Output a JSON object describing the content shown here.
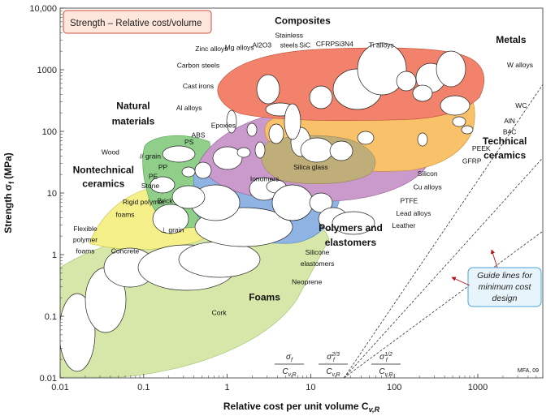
{
  "chart_data": {
    "type": "scatter",
    "title": "Strength – Relative cost/volume",
    "xlabel": "Relative cost per unit volume C",
    "xlabel_sub": "v,R",
    "ylabel": "Strength σ",
    "ylabel_sub": "f",
    "ylabel_unit": "(MPa)",
    "x_scale": "log",
    "y_scale": "log",
    "xlim": [
      0.01,
      6000
    ],
    "ylim": [
      0.01,
      10000
    ],
    "x_ticks": [
      {
        "v": 0.01,
        "label": "0.01"
      },
      {
        "v": 0.1,
        "label": "0.1"
      },
      {
        "v": 1,
        "label": "1"
      },
      {
        "v": 10,
        "label": "10"
      },
      {
        "v": 100,
        "label": "100"
      },
      {
        "v": 1000,
        "label": "1000"
      }
    ],
    "y_ticks": [
      {
        "v": 0.01,
        "label": "0.01"
      },
      {
        "v": 0.1,
        "label": "0.1"
      },
      {
        "v": 1,
        "label": "1"
      },
      {
        "v": 10,
        "label": "10"
      },
      {
        "v": 100,
        "label": "100"
      },
      {
        "v": 1000,
        "label": "1000"
      },
      {
        "v": 10000,
        "label": "10,000"
      }
    ],
    "families": [
      {
        "name": "Metals",
        "color": "#f2826b"
      },
      {
        "name": "Composites",
        "color": "#c99acb"
      },
      {
        "name": "Technical ceramics",
        "color": "#f9c16a"
      },
      {
        "name": "Natural materials",
        "color": "#8fcf8a"
      },
      {
        "name": "Nontechnical ceramics",
        "color": "#f6f08a"
      },
      {
        "name": "Polymers and elastomers",
        "color": "#8fb4e3"
      },
      {
        "name": "Foams",
        "color": "#d7e7a9"
      }
    ],
    "family_labels": [
      {
        "text": "Composites",
        "x": 8,
        "y": 5500
      },
      {
        "text": "Metals",
        "x": 2500,
        "y": 2700
      },
      {
        "text": "Natural",
        "x": 0.075,
        "y": 230
      },
      {
        "text": "materials",
        "x": 0.075,
        "y": 130
      },
      {
        "text": "Technical",
        "x": 2100,
        "y": 62
      },
      {
        "text": "ceramics",
        "x": 2100,
        "y": 36
      },
      {
        "text": "Nontechnical",
        "x": 0.033,
        "y": 21
      },
      {
        "text": "ceramics",
        "x": 0.033,
        "y": 12.5
      },
      {
        "text": "Polymers and",
        "x": 30,
        "y": 2.4
      },
      {
        "text": "elastomers",
        "x": 30,
        "y": 1.4
      },
      {
        "text": "Foams",
        "x": 2.8,
        "y": 0.18
      }
    ],
    "materials": [
      {
        "name": "Zinc alloys",
        "x": 0.65,
        "y": 2000
      },
      {
        "name": "Mg alloys",
        "x": 1.4,
        "y": 2100
      },
      {
        "name": "Al2O3",
        "x": 2.6,
        "y": 2300
      },
      {
        "name": "Stainless",
        "x": 5.5,
        "y": 3300
      },
      {
        "name": "steels",
        "x": 5.5,
        "y": 2300
      },
      {
        "name": "SiC",
        "x": 8.5,
        "y": 2300
      },
      {
        "name": "CFRP",
        "x": 15,
        "y": 2400
      },
      {
        "name": "Si3N4",
        "x": 25,
        "y": 2400
      },
      {
        "name": "Ti alloys",
        "x": 70,
        "y": 2300
      },
      {
        "name": "W alloys",
        "x": 3200,
        "y": 1100
      },
      {
        "name": "Carbon steels",
        "x": 0.45,
        "y": 1080
      },
      {
        "name": "Cast irons",
        "x": 0.45,
        "y": 500
      },
      {
        "name": "Al alloys",
        "x": 0.35,
        "y": 220
      },
      {
        "name": "WC",
        "x": 3300,
        "y": 240
      },
      {
        "name": "AlN",
        "x": 2400,
        "y": 135
      },
      {
        "name": "B4C",
        "x": 2400,
        "y": 90
      },
      {
        "name": "Epoxies",
        "x": 0.9,
        "y": 115
      },
      {
        "name": "ABS",
        "x": 0.45,
        "y": 80
      },
      {
        "name": "PS",
        "x": 0.35,
        "y": 62
      },
      {
        "name": "PEEK",
        "x": 1100,
        "y": 48
      },
      {
        "name": "GFRP",
        "x": 850,
        "y": 30
      },
      {
        "name": "Wood",
        "x": 0.04,
        "y": 42
      },
      {
        "name": "// grain",
        "x": 0.12,
        "y": 36
      },
      {
        "name": "PP",
        "x": 0.17,
        "y": 24
      },
      {
        "name": "PE",
        "x": 0.13,
        "y": 17
      },
      {
        "name": "Stone",
        "x": 0.12,
        "y": 12
      },
      {
        "name": "Silica glass",
        "x": 10,
        "y": 24
      },
      {
        "name": "Ionomers",
        "x": 2.8,
        "y": 15.5
      },
      {
        "name": "Silicon",
        "x": 250,
        "y": 19
      },
      {
        "name": "Cu alloys",
        "x": 250,
        "y": 11.5
      },
      {
        "name": "PTFE",
        "x": 150,
        "y": 6.8
      },
      {
        "name": "Rigid polymer",
        "x": 0.1,
        "y": 6.5
      },
      {
        "name": "foams",
        "x": 0.06,
        "y": 4.1
      },
      {
        "name": "Brick",
        "x": 0.18,
        "y": 6.8
      },
      {
        "name": "Lead alloys",
        "x": 170,
        "y": 4.3
      },
      {
        "name": "Leather",
        "x": 130,
        "y": 2.7
      },
      {
        "name": "Flexible",
        "x": 0.02,
        "y": 2.4
      },
      {
        "name": "polymer",
        "x": 0.02,
        "y": 1.6
      },
      {
        "name": "foams",
        "x": 0.02,
        "y": 1.05
      },
      {
        "name": "⊥ grain",
        "x": 0.22,
        "y": 2.3
      },
      {
        "name": "Concrete",
        "x": 0.06,
        "y": 1.05
      },
      {
        "name": "Silicone",
        "x": 12,
        "y": 1.0
      },
      {
        "name": "elastomers",
        "x": 12,
        "y": 0.65
      },
      {
        "name": "Neoprene",
        "x": 9,
        "y": 0.33
      },
      {
        "name": "Cork",
        "x": 0.8,
        "y": 0.105
      }
    ],
    "guide_lines_label": [
      "Guide lines for",
      "minimum cost",
      "design"
    ],
    "guide_formulas": [
      {
        "num": "σ",
        "num_sub": "f",
        "num_sup": "",
        "den": "C",
        "den_sub": "v,R"
      },
      {
        "num": "σ",
        "num_sub": "f",
        "num_sup": "2/3",
        "den": "C",
        "den_sub": "v,R"
      },
      {
        "num": "σ",
        "num_sub": "f",
        "num_sup": "1/2",
        "den": "C",
        "den_sub": "v,R"
      }
    ],
    "credit": "MFA, 09",
    "grid": false,
    "legend": "none"
  }
}
